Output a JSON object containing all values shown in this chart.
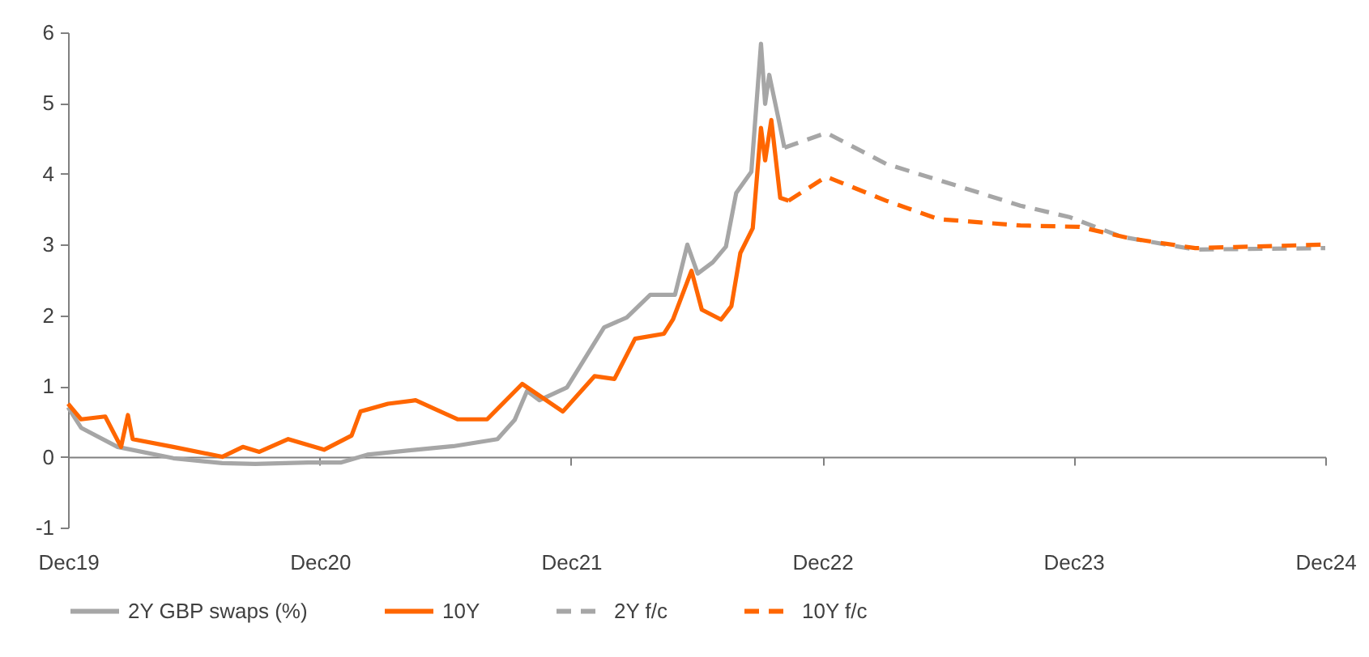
{
  "chart_data": {
    "type": "line",
    "xlim": [
      "2019-12-31",
      "2024-12-31"
    ],
    "xticks": [
      {
        "value": "2019-12-31",
        "label": "Dec19"
      },
      {
        "value": "2020-12-31",
        "label": "Dec20"
      },
      {
        "value": "2021-12-31",
        "label": "Dec21"
      },
      {
        "value": "2022-12-31",
        "label": "Dec22"
      },
      {
        "value": "2023-12-31",
        "label": "Dec23"
      },
      {
        "value": "2024-12-31",
        "label": "Dec24"
      }
    ],
    "ylim": [
      -1,
      6
    ],
    "yticks": [
      -1,
      0,
      1,
      2,
      3,
      4,
      5,
      6
    ],
    "legend": "bottom",
    "series": [
      {
        "name": "2Y GBP swaps (%)",
        "color": "#a6a6a6",
        "line_style": "solid",
        "x": [
          "2019-12-31",
          "2020-01-19",
          "2020-03-12",
          "2020-06-01",
          "2020-08-11",
          "2020-09-28",
          "2020-12-14",
          "2021-01-31",
          "2021-03-10",
          "2021-05-19",
          "2021-07-13",
          "2021-09-15",
          "2021-10-10",
          "2021-10-28",
          "2021-11-15",
          "2021-12-25",
          "2022-02-17",
          "2022-03-22",
          "2022-04-25",
          "2022-05-31",
          "2022-06-18",
          "2022-07-03",
          "2022-07-25",
          "2022-08-13",
          "2022-08-28",
          "2022-09-19",
          "2022-10-03",
          "2022-10-09",
          "2022-10-15",
          "2022-10-28",
          "2022-11-06"
        ],
        "values": [
          0.7,
          0.41,
          0.14,
          -0.02,
          -0.09,
          -0.1,
          -0.08,
          -0.08,
          0.03,
          0.1,
          0.15,
          0.25,
          0.52,
          0.93,
          0.8,
          0.98,
          1.83,
          1.97,
          2.29,
          2.29,
          3.0,
          2.59,
          2.75,
          2.97,
          3.73,
          4.03,
          5.84,
          4.99,
          5.4,
          4.8,
          4.37
        ]
      },
      {
        "name": "10Y",
        "color": "#ff6600",
        "line_style": "solid",
        "x": [
          "2019-12-31",
          "2020-01-19",
          "2020-02-23",
          "2020-03-17",
          "2020-03-27",
          "2020-04-03",
          "2020-06-01",
          "2020-08-11",
          "2020-09-10",
          "2020-10-04",
          "2020-11-15",
          "2021-01-06",
          "2021-02-15",
          "2021-02-28",
          "2021-04-09",
          "2021-05-19",
          "2021-07-19",
          "2021-08-31",
          "2021-10-21",
          "2021-12-19",
          "2022-02-03",
          "2022-03-04",
          "2022-04-03",
          "2022-05-15",
          "2022-05-28",
          "2022-06-24",
          "2022-07-09",
          "2022-08-06",
          "2022-08-21",
          "2022-09-03",
          "2022-09-21",
          "2022-10-03",
          "2022-10-09",
          "2022-10-18",
          "2022-10-31",
          "2022-11-12"
        ],
        "values": [
          0.75,
          0.53,
          0.57,
          0.14,
          0.59,
          0.25,
          0.14,
          0.0,
          0.14,
          0.07,
          0.25,
          0.1,
          0.3,
          0.64,
          0.75,
          0.8,
          0.53,
          0.53,
          1.03,
          0.64,
          1.14,
          1.1,
          1.67,
          1.74,
          1.94,
          2.63,
          2.08,
          1.94,
          2.13,
          2.88,
          3.23,
          4.65,
          4.19,
          4.76,
          3.66,
          3.62
        ]
      },
      {
        "name": "2Y f/c",
        "color": "#a6a6a6",
        "line_style": "dashed",
        "x": [
          "2022-11-06",
          "2023-01-06",
          "2023-04-03",
          "2023-07-12",
          "2023-10-15",
          "2023-12-25",
          "2024-03-10",
          "2024-06-25",
          "2024-12-31"
        ],
        "values": [
          4.37,
          4.58,
          4.14,
          3.84,
          3.55,
          3.39,
          3.11,
          2.93,
          2.95
        ]
      },
      {
        "name": "10Y f/c",
        "color": "#ff6600",
        "line_style": "dashed",
        "x": [
          "2022-11-12",
          "2023-01-06",
          "2023-04-03",
          "2023-06-18",
          "2023-10-15",
          "2024-01-09",
          "2024-03-21",
          "2024-06-25",
          "2024-12-31"
        ],
        "values": [
          3.62,
          3.96,
          3.62,
          3.36,
          3.27,
          3.25,
          3.09,
          2.95,
          3.0
        ]
      }
    ]
  }
}
